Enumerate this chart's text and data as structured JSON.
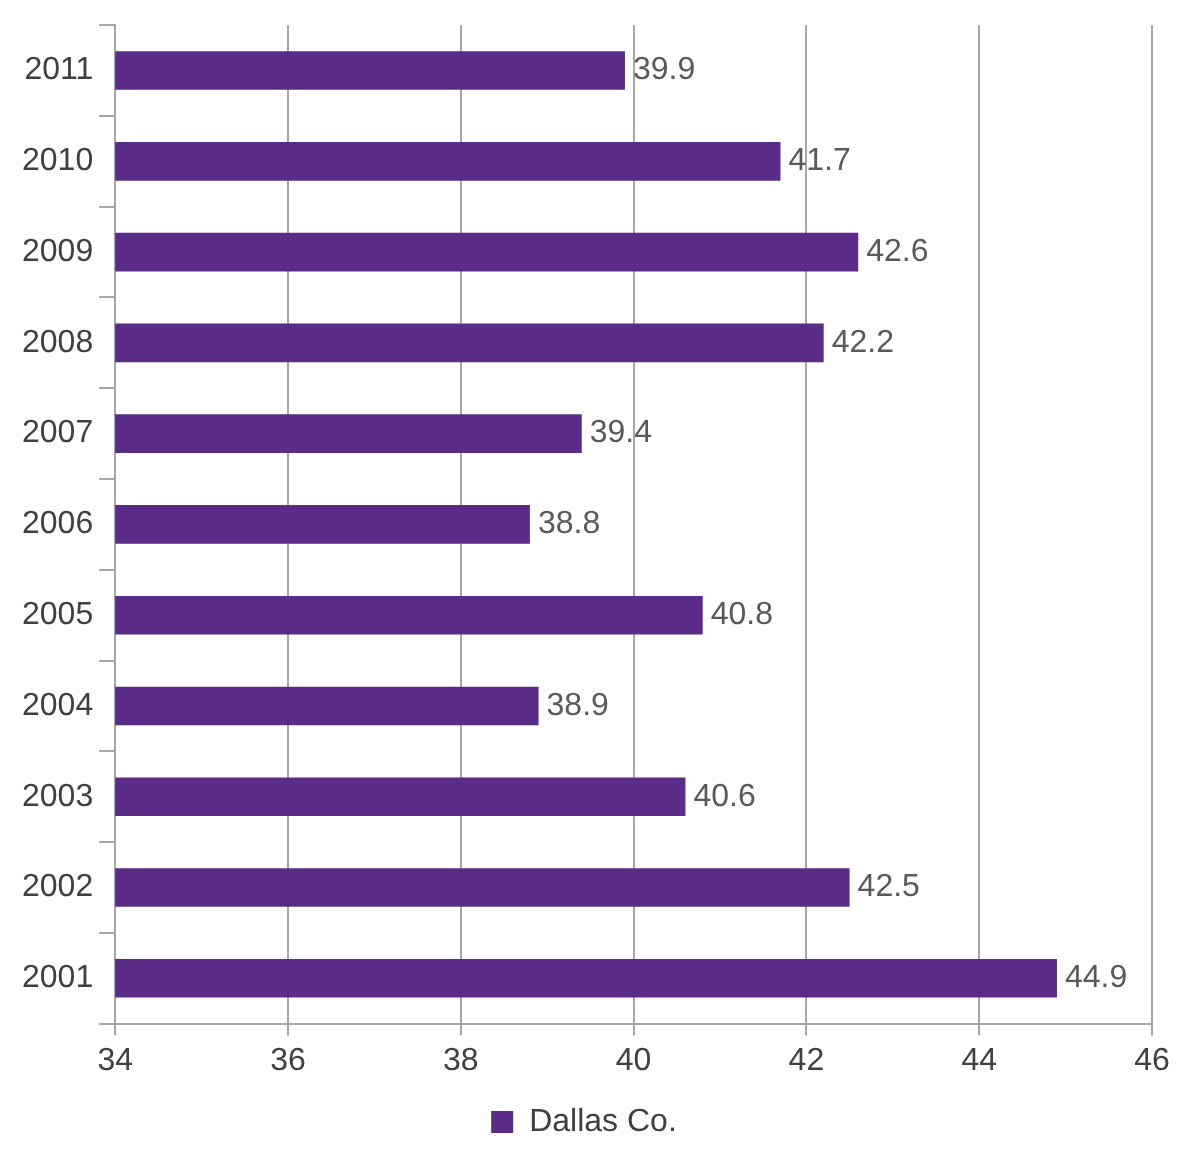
{
  "chart_data": {
    "type": "bar",
    "orientation": "horizontal",
    "categories": [
      "2011",
      "2010",
      "2009",
      "2008",
      "2007",
      "2006",
      "2005",
      "2004",
      "2003",
      "2002",
      "2001"
    ],
    "series": [
      {
        "name": "Dallas Co.",
        "color": "#5b2c87",
        "values": [
          39.9,
          41.7,
          42.6,
          42.2,
          39.4,
          38.8,
          40.8,
          38.9,
          40.6,
          42.5,
          44.9
        ]
      }
    ],
    "xlim": [
      34,
      46
    ],
    "xticks": [
      34,
      36,
      38,
      40,
      42,
      44,
      46
    ],
    "grid": "x",
    "legend": "bottom",
    "data_labels": true
  }
}
